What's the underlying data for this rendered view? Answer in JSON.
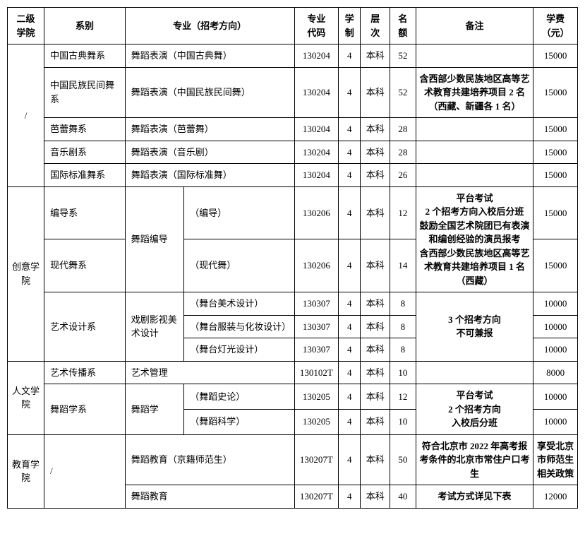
{
  "headers": {
    "college": "二级\n学院",
    "dept": "系别",
    "major": "专业（招考方向）",
    "code": "专业\n代码",
    "years": "学\n制",
    "level": "层\n次",
    "quota": "名\n额",
    "note": "备注",
    "fee": "学费\n（元）"
  },
  "college1": "/",
  "r1": {
    "dept": "中国古典舞系",
    "major": "舞蹈表演（中国古典舞）",
    "code": "130204",
    "years": "4",
    "level": "本科",
    "quota": "52",
    "note": "",
    "fee": "15000"
  },
  "r2": {
    "dept": "中国民族民间舞系",
    "major": "舞蹈表演（中国民族民间舞）",
    "code": "130204",
    "years": "4",
    "level": "本科",
    "quota": "52",
    "note": "含西部少数民族地区高等艺术教育共建培养项目 2 名\n（西藏、新疆各 1 名）",
    "fee": "15000"
  },
  "r3": {
    "dept": "芭蕾舞系",
    "major": "舞蹈表演（芭蕾舞）",
    "code": "130204",
    "years": "4",
    "level": "本科",
    "quota": "28",
    "note": "",
    "fee": "15000"
  },
  "r4": {
    "dept": "音乐剧系",
    "major": "舞蹈表演（音乐剧）",
    "code": "130204",
    "years": "4",
    "level": "本科",
    "quota": "28",
    "note": "",
    "fee": "15000"
  },
  "r5": {
    "dept": "国际标准舞系",
    "major": "舞蹈表演（国际标准舞）",
    "code": "130204",
    "years": "4",
    "level": "本科",
    "quota": "26",
    "note": "",
    "fee": "15000"
  },
  "college2": "创意学院",
  "r6": {
    "dept": "编导系",
    "majorGroup": "舞蹈编导",
    "dir": "（编导）",
    "code": "130206",
    "years": "4",
    "level": "本科",
    "quota": "12",
    "fee": "15000"
  },
  "note67": "平台考试\n2 个招考方向入校后分班\n鼓励全国艺术院团已有表演和编创经验的演员报考\n含西部少数民族地区高等艺术教育共建培养项目 1 名（西藏）",
  "r7": {
    "dept": "现代舞系",
    "dir": "（现代舞）",
    "code": "130206",
    "years": "4",
    "level": "本科",
    "quota": "14",
    "fee": "15000"
  },
  "r8": {
    "dept": "艺术设计系",
    "majorGroup": "戏剧影视美术设计",
    "dir": "（舞台美术设计）",
    "code": "130307",
    "years": "4",
    "level": "本科",
    "quota": "8",
    "fee": "10000"
  },
  "note810": "3 个招考方向\n不可兼报",
  "r9": {
    "dir": "（舞台服装与化妆设计）",
    "code": "130307",
    "years": "4",
    "level": "本科",
    "quota": "8",
    "fee": "10000"
  },
  "r10": {
    "dir": "（舞台灯光设计）",
    "code": "130307",
    "years": "4",
    "level": "本科",
    "quota": "8",
    "fee": "10000"
  },
  "college3": "人文学院",
  "r11": {
    "dept": "艺术传播系",
    "major": "艺术管理",
    "code": "130102T",
    "years": "4",
    "level": "本科",
    "quota": "10",
    "note": "",
    "fee": "8000"
  },
  "r12": {
    "dept": "舞蹈学系",
    "majorGroup": "舞蹈学",
    "dir": "（舞蹈史论）",
    "code": "130205",
    "years": "4",
    "level": "本科",
    "quota": "12",
    "fee": "10000"
  },
  "note1213": "平台考试\n2 个招考方向\n入校后分班",
  "r13": {
    "dir": "（舞蹈科学）",
    "code": "130205",
    "years": "4",
    "level": "本科",
    "quota": "10",
    "fee": "10000"
  },
  "college4": "教育学院",
  "r14": {
    "dept": "/",
    "major": "舞蹈教育（京籍师范生）",
    "code": "130207T",
    "years": "4",
    "level": "本科",
    "quota": "50",
    "note": "符合北京市 2022 年高考报考条件的北京市常住户口考生",
    "fee": "享受北京市师范生相关政策"
  },
  "r15": {
    "major": "舞蹈教育",
    "code": "130207T",
    "years": "4",
    "level": "本科",
    "quota": "40",
    "note": "考试方式详见下表",
    "fee": "12000"
  }
}
